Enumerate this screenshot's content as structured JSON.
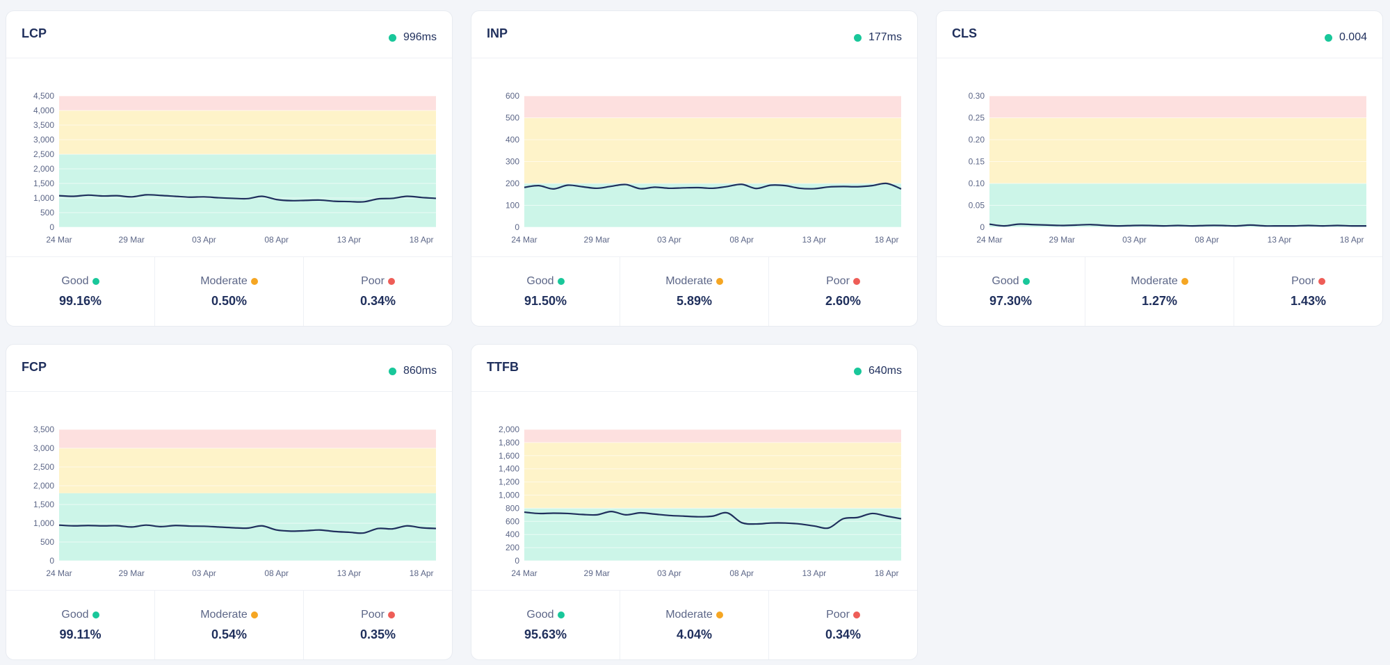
{
  "colors": {
    "good": "#19c79a",
    "moderate": "#f5a623",
    "poor": "#ee5d57",
    "band_good": "#ccf5e8",
    "band_moderate": "#fef3c9",
    "band_poor": "#fde0df",
    "line": "#1f2f5c"
  },
  "stat_labels": {
    "good": "Good",
    "moderate": "Moderate",
    "poor": "Poor"
  },
  "cards": [
    {
      "title": "LCP",
      "value": "996ms",
      "stats": {
        "good": "99.16%",
        "moderate": "0.50%",
        "poor": "0.34%"
      },
      "chart_data": {
        "type": "line",
        "title": "LCP",
        "x_tick_labels": [
          "24 Mar",
          "29 Mar",
          "03 Apr",
          "08 Apr",
          "13 Apr",
          "18 Apr"
        ],
        "y_ticks": [
          0,
          500,
          1000,
          1500,
          2000,
          2500,
          3000,
          3500,
          4000,
          4500
        ],
        "y_tick_labels": [
          "0",
          "500",
          "1,000",
          "1,500",
          "2,000",
          "2,500",
          "3,000",
          "3,500",
          "4,000",
          "4,500"
        ],
        "ylim": [
          0,
          4500
        ],
        "thresholds": {
          "good_max": 2500,
          "moderate_max": 4000
        },
        "series": [
          {
            "values": [
              1080,
              1060,
              1100,
              1070,
              1080,
              1040,
              1110,
              1090,
              1060,
              1030,
              1040,
              1010,
              990,
              980,
              1060,
              950,
              910,
              920,
              930,
              890,
              880,
              870,
              970,
              990,
              1060,
              1020,
              990
            ]
          }
        ]
      }
    },
    {
      "title": "INP",
      "value": "177ms",
      "stats": {
        "good": "91.50%",
        "moderate": "5.89%",
        "poor": "2.60%"
      },
      "chart_data": {
        "type": "line",
        "title": "INP",
        "x_tick_labels": [
          "24 Mar",
          "29 Mar",
          "03 Apr",
          "08 Apr",
          "13 Apr",
          "18 Apr"
        ],
        "y_ticks": [
          0,
          100,
          200,
          300,
          400,
          500,
          600
        ],
        "y_tick_labels": [
          "0",
          "100",
          "200",
          "300",
          "400",
          "500",
          "600"
        ],
        "ylim": [
          0,
          600
        ],
        "thresholds": {
          "good_max": 200,
          "moderate_max": 500
        },
        "series": [
          {
            "values": [
              182,
              190,
              175,
              192,
              185,
              178,
              187,
              195,
              176,
              183,
              178,
              180,
              181,
              178,
              186,
              196,
              177,
              192,
              190,
              178,
              176,
              184,
              186,
              185,
              190,
              200,
              175
            ]
          }
        ]
      }
    },
    {
      "title": "CLS",
      "value": "0.004",
      "stats": {
        "good": "97.30%",
        "moderate": "1.27%",
        "poor": "1.43%"
      },
      "chart_data": {
        "type": "line",
        "title": "CLS",
        "x_tick_labels": [
          "24 Mar",
          "29 Mar",
          "03 Apr",
          "08 Apr",
          "13 Apr",
          "18 Apr"
        ],
        "y_ticks": [
          0,
          0.05,
          0.1,
          0.15,
          0.2,
          0.25,
          0.3
        ],
        "y_tick_labels": [
          "0",
          "0.05",
          "0.10",
          "0.15",
          "0.20",
          "0.25",
          "0.30"
        ],
        "ylim": [
          0,
          0.3
        ],
        "thresholds": {
          "good_max": 0.1,
          "moderate_max": 0.25
        },
        "series": [
          {
            "values": [
              0.007,
              0.003,
              0.007,
              0.006,
              0.005,
              0.004,
              0.005,
              0.006,
              0.004,
              0.003,
              0.004,
              0.004,
              0.003,
              0.004,
              0.003,
              0.004,
              0.004,
              0.003,
              0.005,
              0.003,
              0.003,
              0.003,
              0.004,
              0.003,
              0.004,
              0.003,
              0.003
            ]
          }
        ]
      }
    },
    {
      "title": "FCP",
      "value": "860ms",
      "stats": {
        "good": "99.11%",
        "moderate": "0.54%",
        "poor": "0.35%"
      },
      "chart_data": {
        "type": "line",
        "title": "FCP",
        "x_tick_labels": [
          "24 Mar",
          "29 Mar",
          "03 Apr",
          "08 Apr",
          "13 Apr",
          "18 Apr"
        ],
        "y_ticks": [
          0,
          500,
          1000,
          1500,
          2000,
          2500,
          3000,
          3500
        ],
        "y_tick_labels": [
          "0",
          "500",
          "1,000",
          "1,500",
          "2,000",
          "2,500",
          "3,000",
          "3,500"
        ],
        "ylim": [
          0,
          3500
        ],
        "thresholds": {
          "good_max": 1800,
          "moderate_max": 3000
        },
        "series": [
          {
            "values": [
              950,
              930,
              940,
              930,
              935,
              900,
              950,
              910,
              940,
              925,
              920,
              900,
              880,
              870,
              930,
              820,
              790,
              800,
              820,
              780,
              760,
              740,
              860,
              850,
              930,
              880,
              860
            ]
          }
        ]
      }
    },
    {
      "title": "TTFB",
      "value": "640ms",
      "stats": {
        "good": "95.63%",
        "moderate": "4.04%",
        "poor": "0.34%"
      },
      "chart_data": {
        "type": "line",
        "title": "TTFB",
        "x_tick_labels": [
          "24 Mar",
          "29 Mar",
          "03 Apr",
          "08 Apr",
          "13 Apr",
          "18 Apr"
        ],
        "y_ticks": [
          0,
          200,
          400,
          600,
          800,
          1000,
          1200,
          1400,
          1600,
          1800,
          2000
        ],
        "y_tick_labels": [
          "0",
          "200",
          "400",
          "600",
          "800",
          "1,000",
          "1,200",
          "1,400",
          "1,600",
          "1,800",
          "2,000"
        ],
        "ylim": [
          0,
          2000
        ],
        "thresholds": {
          "good_max": 800,
          "moderate_max": 1800
        },
        "series": [
          {
            "values": [
              740,
              720,
              725,
              720,
              705,
              700,
              750,
              700,
              730,
              710,
              690,
              680,
              670,
              680,
              730,
              580,
              560,
              575,
              575,
              560,
              530,
              500,
              640,
              660,
              720,
              680,
              640
            ]
          }
        ]
      }
    }
  ]
}
